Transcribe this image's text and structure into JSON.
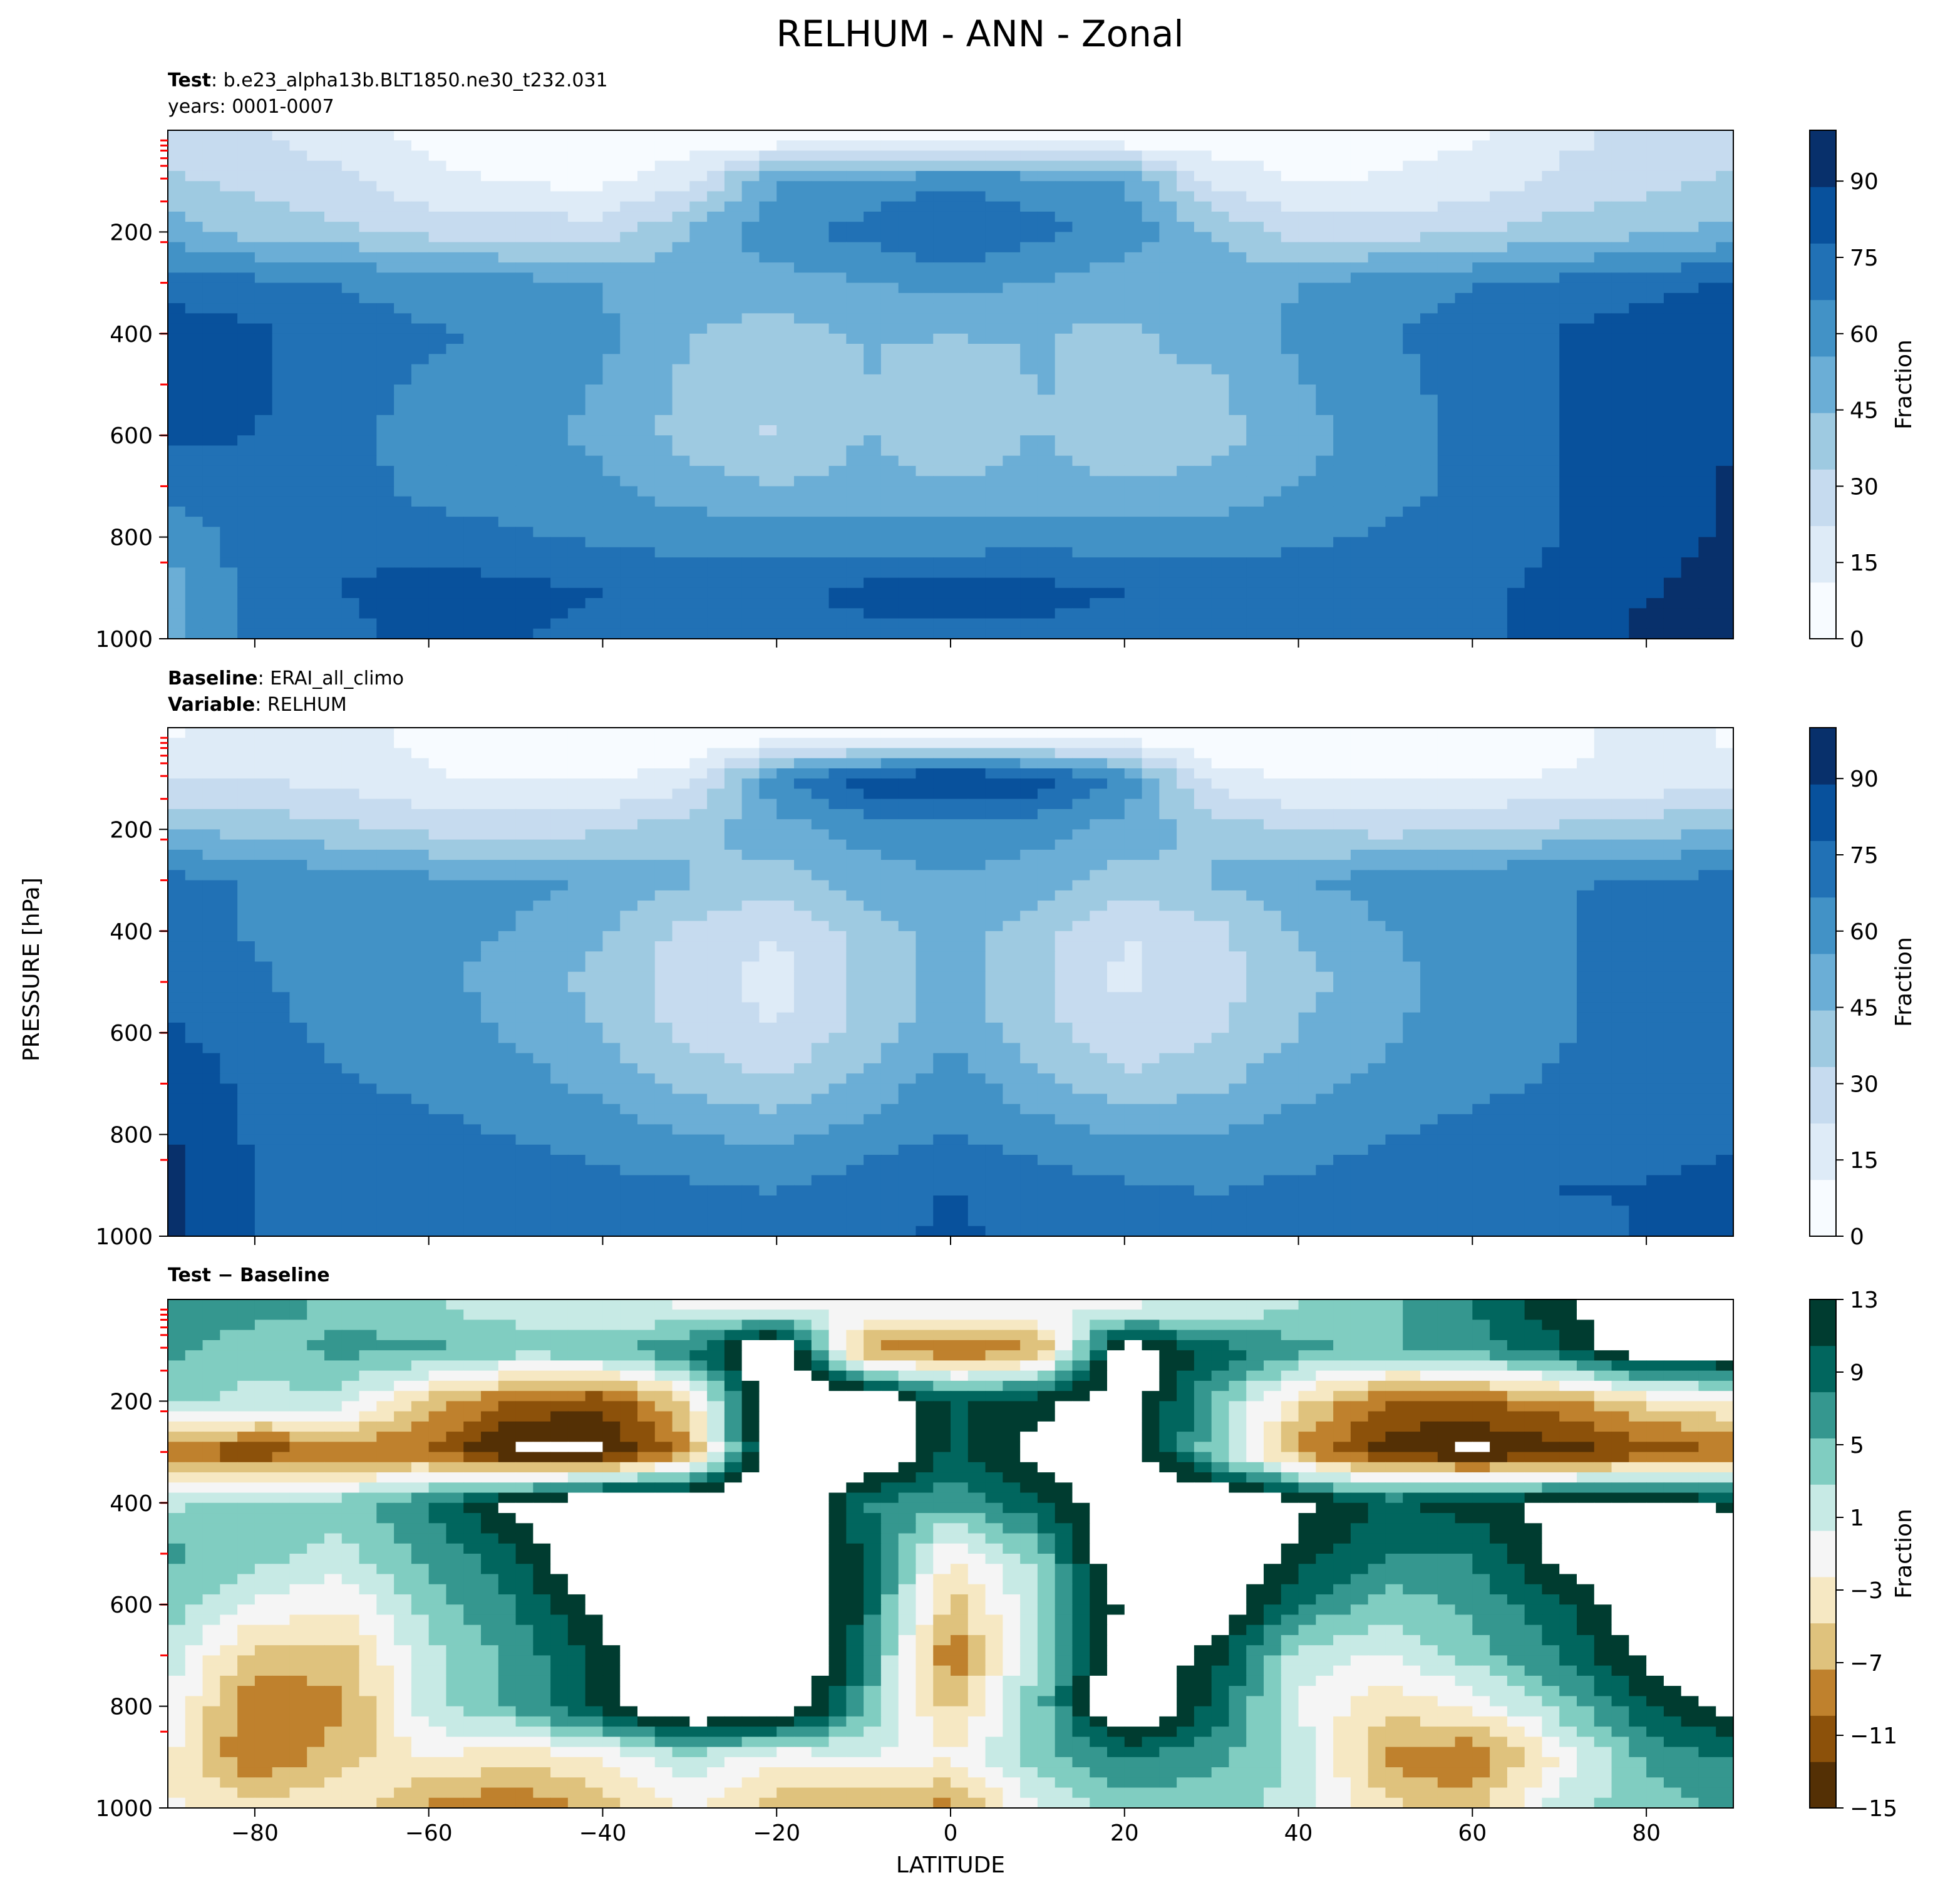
{
  "figure": {
    "title": "RELHUM - ANN - Zonal",
    "shared_ylabel": "PRESSURE [hPa]",
    "shared_xlabel": "LATITUDE"
  },
  "panels": [
    {
      "meta": [
        {
          "bold": "Test",
          "text": ": b.e23_alpha13b.BLT1850.ne30_t232.031"
        },
        {
          "bold": "",
          "text": "years: 0001-0007"
        }
      ],
      "colorbar_label": "Fraction",
      "colorbar_ticks": [
        "0",
        "15",
        "30",
        "45",
        "60",
        "75",
        "90"
      ]
    },
    {
      "meta": [
        {
          "bold": "Baseline",
          "text": ": ERAI_all_climo"
        },
        {
          "bold": "Variable",
          "text": ": RELHUM"
        }
      ],
      "colorbar_label": "Fraction",
      "colorbar_ticks": [
        "0",
        "15",
        "30",
        "45",
        "60",
        "75",
        "90"
      ]
    },
    {
      "meta": [
        {
          "bold": "Test − Baseline",
          "text": ""
        }
      ],
      "colorbar_label": "Fraction",
      "colorbar_ticks": [
        "−15",
        "−11",
        "−7",
        "−3",
        "1",
        "5",
        "9",
        "13"
      ]
    }
  ],
  "chart_data": [
    {
      "type": "heatmap",
      "title": "",
      "xlabel": "LATITUDE",
      "ylabel": "PRESSURE [hPa]",
      "xlim": [
        -90,
        90
      ],
      "ylim": [
        1000,
        0
      ],
      "xticks": [
        -80,
        -60,
        -40,
        -20,
        0,
        20,
        40,
        60,
        80
      ],
      "yticks": [
        200,
        400,
        600,
        800,
        1000
      ],
      "value_range": [
        0,
        100
      ],
      "colormap": "Blues",
      "colors": [
        "#f7fbff",
        "#deebf7",
        "#c6dbef",
        "#9ecae1",
        "#6baed6",
        "#4292c6",
        "#2171b5",
        "#08519c",
        "#08306b"
      ],
      "lat": [
        -90,
        -80,
        -70,
        -60,
        -50,
        -40,
        -30,
        -20,
        -10,
        0,
        10,
        20,
        30,
        40,
        50,
        60,
        70,
        80,
        90
      ],
      "lev": [
        20,
        100,
        200,
        300,
        400,
        500,
        600,
        700,
        800,
        900,
        1000
      ],
      "values": [
        [
          30,
          24,
          18,
          8,
          6,
          5,
          5,
          5,
          5,
          5,
          5,
          5,
          5,
          6,
          8,
          10,
          20,
          25,
          30
        ],
        [
          35,
          30,
          24,
          14,
          10,
          8,
          20,
          55,
          60,
          65,
          62,
          55,
          20,
          10,
          12,
          16,
          25,
          30,
          35
        ],
        [
          50,
          40,
          36,
          30,
          28,
          28,
          45,
          65,
          70,
          78,
          70,
          62,
          45,
          28,
          28,
          32,
          38,
          42,
          48
        ],
        [
          72,
          70,
          66,
          62,
          60,
          55,
          48,
          50,
          55,
          60,
          55,
          50,
          48,
          55,
          62,
          66,
          70,
          74,
          78
        ],
        [
          85,
          80,
          72,
          68,
          65,
          58,
          45,
          40,
          45,
          45,
          45,
          42,
          50,
          58,
          66,
          72,
          78,
          84,
          88
        ],
        [
          85,
          80,
          70,
          65,
          63,
          55,
          42,
          35,
          45,
          38,
          45,
          40,
          42,
          55,
          62,
          72,
          78,
          84,
          88
        ],
        [
          80,
          78,
          70,
          62,
          60,
          52,
          40,
          32,
          45,
          36,
          45,
          38,
          40,
          52,
          60,
          70,
          78,
          85,
          88
        ],
        [
          70,
          74,
          70,
          64,
          62,
          58,
          50,
          45,
          48,
          45,
          48,
          45,
          48,
          56,
          62,
          70,
          78,
          86,
          90
        ],
        [
          60,
          72,
          72,
          70,
          68,
          65,
          62,
          60,
          60,
          60,
          62,
          60,
          62,
          65,
          68,
          72,
          78,
          86,
          90
        ],
        [
          50,
          72,
          78,
          84,
          80,
          78,
          72,
          76,
          80,
          80,
          80,
          78,
          74,
          72,
          74,
          76,
          80,
          88,
          92
        ],
        [
          null,
          70,
          75,
          80,
          78,
          76,
          72,
          74,
          76,
          76,
          76,
          74,
          72,
          72,
          74,
          76,
          82,
          92,
          95
        ]
      ]
    },
    {
      "type": "heatmap",
      "title": "",
      "xlabel": "LATITUDE",
      "ylabel": "PRESSURE [hPa]",
      "xlim": [
        -90,
        90
      ],
      "ylim": [
        1000,
        0
      ],
      "xticks": [
        -80,
        -60,
        -40,
        -20,
        0,
        20,
        40,
        60,
        80
      ],
      "yticks": [
        200,
        400,
        600,
        800,
        1000
      ],
      "value_range": [
        0,
        100
      ],
      "colormap": "Blues",
      "colors": [
        "#f7fbff",
        "#deebf7",
        "#c6dbef",
        "#9ecae1",
        "#6baed6",
        "#4292c6",
        "#2171b5",
        "#08519c",
        "#08306b"
      ],
      "lat": [
        -90,
        -80,
        -70,
        -60,
        -50,
        -40,
        -30,
        -20,
        -10,
        0,
        10,
        20,
        30,
        40,
        50,
        60,
        70,
        80,
        90
      ],
      "lev": [
        20,
        100,
        200,
        300,
        400,
        500,
        600,
        700,
        800,
        900,
        1000
      ],
      "values": [
        [
          10,
          15,
          15,
          8,
          6,
          5,
          5,
          5,
          5,
          5,
          5,
          5,
          5,
          5,
          6,
          6,
          8,
          15,
          10
        ],
        [
          22,
          22,
          18,
          12,
          10,
          10,
          15,
          65,
          85,
          90,
          85,
          65,
          15,
          10,
          10,
          10,
          12,
          14,
          15
        ],
        [
          45,
          40,
          36,
          30,
          28,
          32,
          42,
          50,
          60,
          62,
          60,
          50,
          42,
          32,
          30,
          32,
          36,
          40,
          45
        ],
        [
          70,
          66,
          62,
          58,
          58,
          55,
          45,
          40,
          50,
          55,
          50,
          40,
          45,
          55,
          60,
          64,
          66,
          68,
          70
        ],
        [
          70,
          66,
          62,
          58,
          55,
          45,
          30,
          22,
          38,
          50,
          38,
          22,
          30,
          45,
          55,
          62,
          66,
          70,
          72
        ],
        [
          72,
          68,
          62,
          58,
          52,
          40,
          26,
          18,
          35,
          50,
          35,
          20,
          28,
          40,
          52,
          60,
          66,
          70,
          72
        ],
        [
          80,
          70,
          64,
          60,
          54,
          44,
          30,
          22,
          38,
          52,
          38,
          25,
          32,
          45,
          54,
          62,
          66,
          70,
          72
        ],
        [
          88,
          74,
          68,
          64,
          60,
          52,
          42,
          35,
          48,
          62,
          48,
          36,
          42,
          52,
          58,
          64,
          68,
          72,
          74
        ],
        [
          90,
          76,
          72,
          70,
          66,
          62,
          56,
          52,
          60,
          68,
          60,
          55,
          56,
          62,
          66,
          70,
          72,
          74,
          76
        ],
        [
          92,
          78,
          76,
          78,
          74,
          70,
          68,
          66,
          72,
          78,
          72,
          68,
          66,
          68,
          72,
          76,
          78,
          78,
          80
        ],
        [
          94,
          76,
          74,
          76,
          74,
          72,
          70,
          70,
          74,
          80,
          74,
          70,
          70,
          70,
          72,
          74,
          76,
          78,
          80
        ]
      ]
    },
    {
      "type": "heatmap",
      "title": "",
      "xlabel": "LATITUDE",
      "ylabel": "PRESSURE [hPa]",
      "xlim": [
        -90,
        90
      ],
      "ylim": [
        1000,
        0
      ],
      "xticks": [
        -80,
        -60,
        -40,
        -20,
        0,
        20,
        40,
        60,
        80
      ],
      "yticks": [
        200,
        400,
        600,
        800,
        1000
      ],
      "value_range": [
        -15,
        13
      ],
      "colormap": "BrBG",
      "colors": [
        "#543005",
        "#8c510a",
        "#bf812d",
        "#dfc27d",
        "#f6e8c3",
        "#f5f5f5",
        "#c7eae5",
        "#80cdc1",
        "#35978f",
        "#01665e",
        "#003c30"
      ],
      "lat": [
        -90,
        -80,
        -70,
        -60,
        -50,
        -40,
        -30,
        -20,
        -10,
        0,
        10,
        20,
        30,
        40,
        50,
        60,
        70,
        80,
        90
      ],
      "lev": [
        20,
        100,
        200,
        300,
        400,
        500,
        600,
        700,
        800,
        900,
        1000
      ],
      "values": [
        [
          8,
          6,
          5,
          3,
          2,
          1,
          0,
          0,
          0,
          0,
          0,
          0,
          1,
          3,
          5,
          8,
          12,
          16,
          18
        ],
        [
          6,
          4,
          6,
          6,
          4,
          5,
          8,
          18,
          -8,
          -10,
          -8,
          16,
          10,
          6,
          5,
          6,
          10,
          16,
          16
        ],
        [
          4,
          2,
          2,
          -6,
          -10,
          -12,
          -4,
          18,
          18,
          10,
          12,
          16,
          5,
          -4,
          -10,
          -10,
          -8,
          -4,
          -2
        ],
        [
          -10,
          -12,
          -10,
          -10,
          -16,
          -16,
          -8,
          18,
          18,
          10,
          14,
          16,
          4,
          -8,
          -14,
          -16,
          -14,
          -12,
          -10
        ],
        [
          2,
          4,
          4,
          8,
          14,
          18,
          18,
          18,
          8,
          6,
          10,
          16,
          18,
          14,
          10,
          12,
          14,
          14,
          12
        ],
        [
          6,
          4,
          2,
          6,
          10,
          18,
          18,
          18,
          10,
          -2,
          4,
          18,
          18,
          12,
          8,
          8,
          14,
          16,
          18
        ],
        [
          4,
          0,
          -2,
          4,
          8,
          14,
          18,
          20,
          10,
          -6,
          2,
          14,
          16,
          8,
          4,
          6,
          10,
          16,
          18
        ],
        [
          2,
          -6,
          -6,
          2,
          6,
          12,
          18,
          20,
          8,
          -10,
          4,
          16,
          12,
          2,
          0,
          4,
          8,
          14,
          18
        ],
        [
          0,
          -10,
          -8,
          2,
          6,
          12,
          18,
          18,
          6,
          -6,
          4,
          18,
          10,
          0,
          -4,
          -2,
          4,
          10,
          14
        ],
        [
          -2,
          -10,
          -6,
          -2,
          -4,
          -2,
          2,
          -2,
          0,
          -2,
          4,
          8,
          6,
          2,
          -8,
          -10,
          -2,
          6,
          8
        ],
        [
          null,
          -4,
          -2,
          -8,
          -10,
          -6,
          -2,
          -6,
          -8,
          -8,
          0,
          4,
          4,
          2,
          -4,
          -6,
          2,
          4,
          6
        ]
      ]
    }
  ]
}
